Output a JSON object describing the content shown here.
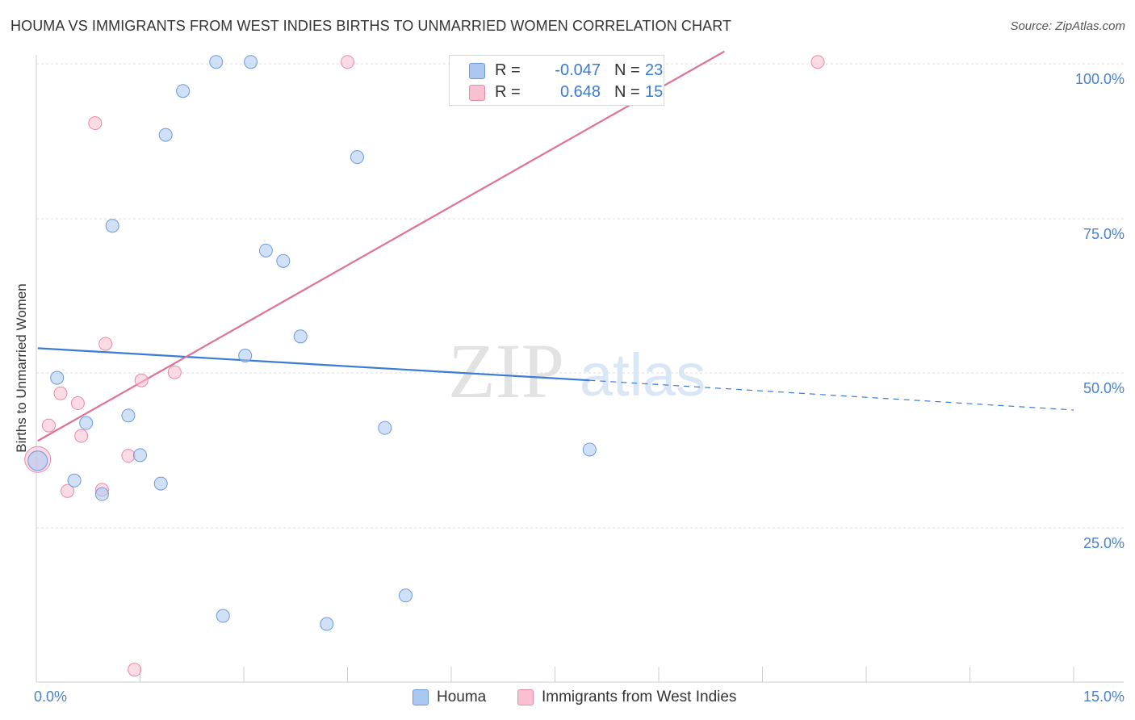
{
  "title": "HOUMA VS IMMIGRANTS FROM WEST INDIES BIRTHS TO UNMARRIED WOMEN CORRELATION CHART",
  "source": "Source: ZipAtlas.com",
  "watermark": {
    "zip": "ZIP",
    "atlas": "atlas"
  },
  "legend_top": [
    {
      "label": "R =",
      "r": "-0.047",
      "n_label": "N =",
      "n": "23",
      "color": "#aac8f0",
      "border": "#6c9bd8"
    },
    {
      "label": "R =",
      "r": "0.648",
      "n_label": "N =",
      "n": "15",
      "color": "#f8c0d0",
      "border": "#e88aa8"
    }
  ],
  "legend_bottom": [
    {
      "label": "Houma",
      "color": "#aac8f0",
      "border": "#6c9bd8"
    },
    {
      "label": "Immigrants from West Indies",
      "color": "#f8c0d0",
      "border": "#e88aa8"
    }
  ],
  "chart_data": {
    "type": "scatter",
    "title": "HOUMA VS IMMIGRANTS FROM WEST INDIES BIRTHS TO UNMARRIED WOMEN CORRELATION CHART",
    "xlabel": "",
    "ylabel": "Births to Unmarried Women",
    "xlim": [
      0,
      15
    ],
    "ylim": [
      0,
      102
    ],
    "x_tick_labels": [
      "0.0%",
      "15.0%"
    ],
    "y_ticks": [
      25,
      50,
      75,
      100
    ],
    "y_tick_labels": [
      "25.0%",
      "50.0%",
      "75.0%",
      "100.0%"
    ],
    "grid": true,
    "series": [
      {
        "name": "Houma",
        "color": "#aac8f0",
        "stroke": "#6c9bd8",
        "line_color": "#3a7bd5",
        "points": [
          [
            0.02,
            35.8
          ],
          [
            0.3,
            49.2
          ],
          [
            0.55,
            32.6
          ],
          [
            0.72,
            41.9
          ],
          [
            0.95,
            30.4
          ],
          [
            1.1,
            73.8
          ],
          [
            1.33,
            43.1
          ],
          [
            1.5,
            36.7
          ],
          [
            1.8,
            32.1
          ],
          [
            1.87,
            88.5
          ],
          [
            2.12,
            95.6
          ],
          [
            2.6,
            100.3
          ],
          [
            2.7,
            10.7
          ],
          [
            3.1,
            100.3
          ],
          [
            3.02,
            52.8
          ],
          [
            3.32,
            69.8
          ],
          [
            3.57,
            68.1
          ],
          [
            3.82,
            55.9
          ],
          [
            4.2,
            9.4
          ],
          [
            4.64,
            84.9
          ],
          [
            5.04,
            41.1
          ],
          [
            5.34,
            14.0
          ],
          [
            8.0,
            37.6
          ]
        ],
        "trend": {
          "x0": 0.02,
          "y0": 54.0,
          "x1": 8.0,
          "y1": 48.8,
          "dash_x1": 15.0,
          "dash_y1": 44.0
        }
      },
      {
        "name": "Immigrants from West Indies",
        "color": "#f8c0d0",
        "stroke": "#e88aa8",
        "line_color": "#e07098",
        "points": [
          [
            0.02,
            36.0
          ],
          [
            0.18,
            41.5
          ],
          [
            0.35,
            46.7
          ],
          [
            0.45,
            30.9
          ],
          [
            0.6,
            45.1
          ],
          [
            0.65,
            39.8
          ],
          [
            0.85,
            90.4
          ],
          [
            0.95,
            31.1
          ],
          [
            1.0,
            54.7
          ],
          [
            1.33,
            36.6
          ],
          [
            1.42,
            2.0
          ],
          [
            1.52,
            48.8
          ],
          [
            2.0,
            50.1
          ],
          [
            4.5,
            100.3
          ],
          [
            11.3,
            100.3
          ]
        ],
        "trend": {
          "x0": 0.02,
          "y0": 39.0,
          "x1": 9.95,
          "y1": 102.0
        }
      }
    ]
  }
}
